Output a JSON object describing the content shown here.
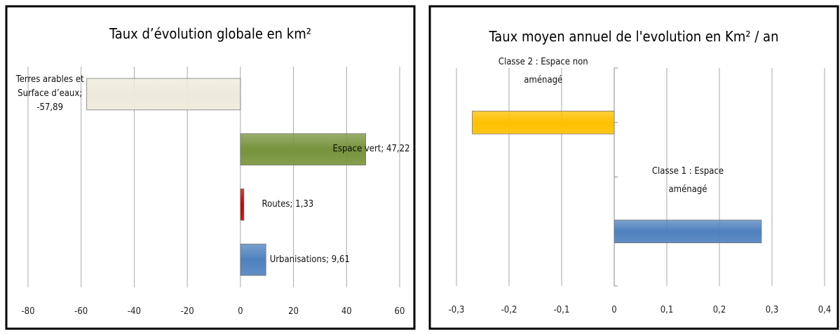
{
  "chart_data": [
    {
      "type": "bar",
      "title": "Taux d’évolution globale en km²",
      "values": [
        -57.89,
        47.22,
        1.33,
        9.61
      ],
      "value_labels": [
        "Terres arables et Surface d’eaux; -57,89",
        "Espace vert; 47,22",
        "Routes; 1,33",
        "Urbanisations; 9,61"
      ],
      "colors": [
        "#eeeadb",
        "#77933c",
        "#c00000",
        "#4f81bd"
      ],
      "xlim": [
        -80,
        60
      ],
      "xticks": [
        -80,
        -60,
        -40,
        -20,
        0,
        20,
        40,
        60
      ],
      "grid": true
    },
    {
      "type": "bar",
      "title": "Taux moyen annuel de l'evolution en Km² / an",
      "categories": [
        "Classe 2 : Espace non aménagé",
        "Classe 1 : Espace aménagé"
      ],
      "values": [
        -0.27,
        0.28
      ],
      "colors": [
        "#ffc000",
        "#4f81bd"
      ],
      "xlim": [
        -0.3,
        0.4
      ],
      "xticks": [
        {
          "value": -0.3,
          "label": "-0,3"
        },
        {
          "value": -0.2,
          "label": "-0,2"
        },
        {
          "value": -0.1,
          "label": "-0,1"
        },
        0,
        {
          "value": 0.1,
          "label": "0,1"
        },
        {
          "value": 0.2,
          "label": "0,2"
        },
        {
          "value": 0.3,
          "label": "0,3"
        },
        {
          "value": 0.4,
          "label": "0,4"
        }
      ],
      "grid": true
    }
  ]
}
